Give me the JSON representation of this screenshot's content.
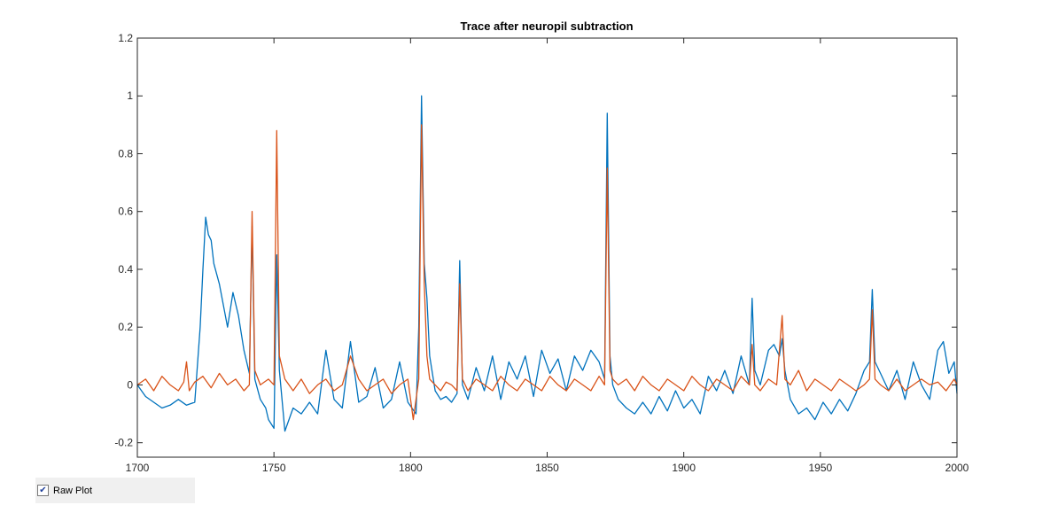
{
  "chart_data": {
    "type": "line",
    "title": "Trace after neuropil subtraction",
    "xlabel": "",
    "ylabel": "",
    "xlim": [
      1700,
      2000
    ],
    "ylim": [
      -0.25,
      1.2
    ],
    "xticks": [
      "1700",
      "1750",
      "1800",
      "1850",
      "1900",
      "1950",
      "2000"
    ],
    "yticks": [
      "-0.2",
      "0",
      "0.2",
      "0.4",
      "0.6",
      "0.8",
      "1",
      "1.2"
    ],
    "grid": false,
    "series": [
      {
        "color": "#0072BD",
        "x": [
          1700,
          1703,
          1706,
          1709,
          1712,
          1715,
          1718,
          1721,
          1723,
          1724,
          1725,
          1726,
          1727,
          1728,
          1730,
          1732,
          1733,
          1735,
          1737,
          1739,
          1741,
          1742,
          1743,
          1745,
          1747,
          1748,
          1750,
          1751,
          1752,
          1754,
          1757,
          1760,
          1763,
          1766,
          1769,
          1772,
          1775,
          1778,
          1781,
          1784,
          1787,
          1790,
          1793,
          1796,
          1799,
          1802,
          1803,
          1804,
          1805,
          1806,
          1807,
          1809,
          1811,
          1813,
          1815,
          1817,
          1818,
          1819,
          1821,
          1824,
          1827,
          1830,
          1833,
          1836,
          1839,
          1842,
          1845,
          1848,
          1851,
          1854,
          1857,
          1860,
          1863,
          1866,
          1869,
          1871,
          1872,
          1873,
          1874,
          1876,
          1879,
          1882,
          1885,
          1888,
          1891,
          1894,
          1897,
          1900,
          1903,
          1906,
          1909,
          1912,
          1915,
          1918,
          1921,
          1924,
          1925,
          1926,
          1928,
          1931,
          1933,
          1935,
          1936,
          1937,
          1939,
          1942,
          1945,
          1948,
          1951,
          1954,
          1957,
          1960,
          1963,
          1966,
          1968,
          1969,
          1970,
          1972,
          1975,
          1978,
          1981,
          1984,
          1987,
          1990,
          1993,
          1995,
          1997,
          1999,
          2000
        ],
        "y": [
          0.0,
          -0.04,
          -0.06,
          -0.08,
          -0.07,
          -0.05,
          -0.07,
          -0.06,
          0.2,
          0.4,
          0.58,
          0.52,
          0.5,
          0.42,
          0.35,
          0.25,
          0.2,
          0.32,
          0.24,
          0.12,
          0.04,
          0.55,
          0.02,
          -0.05,
          -0.08,
          -0.12,
          -0.15,
          0.45,
          0.05,
          -0.16,
          -0.08,
          -0.1,
          -0.06,
          -0.1,
          0.12,
          -0.05,
          -0.08,
          0.15,
          -0.06,
          -0.04,
          0.06,
          -0.08,
          -0.05,
          0.08,
          -0.06,
          -0.1,
          0.2,
          1.0,
          0.42,
          0.3,
          0.1,
          -0.02,
          -0.05,
          -0.04,
          -0.06,
          -0.03,
          0.43,
          0.0,
          -0.05,
          0.06,
          -0.02,
          0.1,
          -0.05,
          0.08,
          0.02,
          0.1,
          -0.04,
          0.12,
          0.04,
          0.09,
          -0.02,
          0.1,
          0.05,
          0.12,
          0.08,
          0.02,
          0.94,
          0.1,
          0.0,
          -0.05,
          -0.08,
          -0.1,
          -0.06,
          -0.1,
          -0.04,
          -0.09,
          -0.02,
          -0.08,
          -0.05,
          -0.1,
          0.03,
          -0.02,
          0.05,
          -0.03,
          0.1,
          0.0,
          0.3,
          0.05,
          0.0,
          0.12,
          0.14,
          0.1,
          0.16,
          0.05,
          -0.05,
          -0.1,
          -0.08,
          -0.12,
          -0.06,
          -0.1,
          -0.05,
          -0.09,
          -0.03,
          0.05,
          0.08,
          0.33,
          0.08,
          0.04,
          -0.02,
          0.05,
          -0.05,
          0.08,
          0.0,
          -0.05,
          0.12,
          0.15,
          0.04,
          0.08,
          -0.03
        ]
      },
      {
        "color": "#D95319",
        "x": [
          1700,
          1703,
          1706,
          1709,
          1712,
          1715,
          1717,
          1718,
          1719,
          1721,
          1724,
          1727,
          1730,
          1733,
          1736,
          1739,
          1741,
          1742,
          1743,
          1745,
          1748,
          1750,
          1751,
          1752,
          1754,
          1757,
          1760,
          1763,
          1766,
          1769,
          1772,
          1775,
          1778,
          1781,
          1784,
          1787,
          1790,
          1793,
          1796,
          1799,
          1801,
          1803,
          1804,
          1805,
          1806,
          1807,
          1809,
          1811,
          1813,
          1815,
          1817,
          1818,
          1819,
          1821,
          1824,
          1827,
          1830,
          1833,
          1836,
          1839,
          1842,
          1845,
          1848,
          1851,
          1854,
          1857,
          1860,
          1863,
          1866,
          1869,
          1871,
          1872,
          1873,
          1874,
          1876,
          1879,
          1882,
          1885,
          1888,
          1891,
          1894,
          1897,
          1900,
          1903,
          1906,
          1909,
          1912,
          1915,
          1918,
          1921,
          1924,
          1925,
          1926,
          1928,
          1931,
          1934,
          1936,
          1937,
          1939,
          1942,
          1945,
          1948,
          1951,
          1954,
          1957,
          1960,
          1963,
          1966,
          1968,
          1969,
          1970,
          1972,
          1975,
          1978,
          1981,
          1984,
          1987,
          1990,
          1993,
          1996,
          1999,
          2000
        ],
        "y": [
          0.0,
          0.02,
          -0.02,
          0.03,
          0.0,
          -0.02,
          0.01,
          0.08,
          -0.02,
          0.01,
          0.03,
          -0.01,
          0.04,
          0.0,
          0.02,
          -0.02,
          0.0,
          0.6,
          0.05,
          0.0,
          0.02,
          0.0,
          0.88,
          0.1,
          0.02,
          -0.02,
          0.02,
          -0.03,
          0.0,
          0.02,
          -0.02,
          0.0,
          0.1,
          0.02,
          -0.02,
          0.0,
          0.02,
          -0.03,
          0.0,
          0.02,
          -0.12,
          0.02,
          0.9,
          0.35,
          0.1,
          0.02,
          0.0,
          -0.02,
          0.01,
          0.0,
          -0.02,
          0.35,
          0.02,
          -0.02,
          0.02,
          0.0,
          -0.02,
          0.03,
          0.0,
          -0.02,
          0.02,
          0.0,
          -0.02,
          0.03,
          0.0,
          -0.02,
          0.02,
          0.0,
          -0.02,
          0.03,
          0.0,
          0.75,
          0.05,
          0.02,
          0.0,
          0.02,
          -0.02,
          0.03,
          0.0,
          -0.02,
          0.02,
          0.0,
          -0.02,
          0.03,
          0.0,
          -0.02,
          0.02,
          0.0,
          -0.02,
          0.03,
          0.0,
          0.14,
          0.0,
          -0.02,
          0.02,
          0.0,
          0.24,
          0.02,
          0.0,
          0.05,
          -0.02,
          0.02,
          0.0,
          -0.02,
          0.02,
          0.0,
          -0.02,
          0.0,
          0.02,
          0.26,
          0.02,
          0.0,
          -0.02,
          0.02,
          -0.02,
          0.0,
          0.02,
          0.0,
          0.01,
          -0.02,
          0.02,
          0.0
        ]
      }
    ]
  },
  "controls": {
    "raw_plot": {
      "label": "Raw Plot",
      "checked": true,
      "check_glyph": "✔"
    }
  }
}
